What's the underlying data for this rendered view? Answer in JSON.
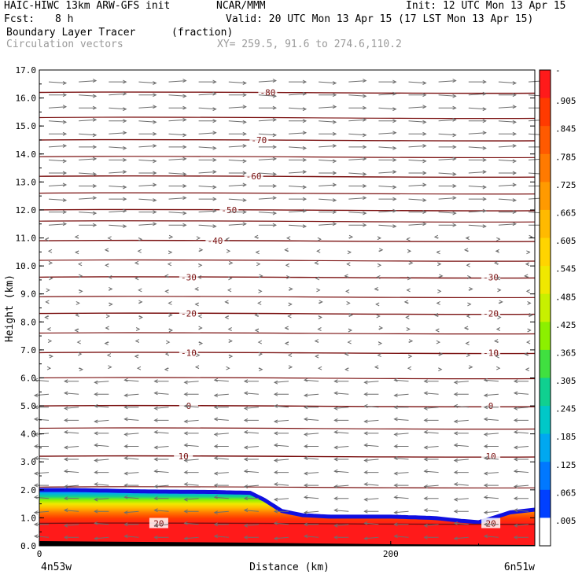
{
  "header": {
    "model": "HAIC-HIWC 13km ARW-GFS init",
    "org": "NCAR/MMM",
    "init": "Init: 12 UTC Mon 13 Apr 15",
    "fcst_label": "Fcst:",
    "fcst_value": "8 h",
    "valid": "Valid: 20 UTC Mon 13 Apr 15 (17 LST Mon 13 Apr 15)",
    "field": "Boundary Layer Tracer",
    "field_units": "(fraction)",
    "overlay": "Circulation vectors",
    "xy": "XY= 259.5, 91.6 to 274.6,110.2"
  },
  "chart_data": {
    "type": "heatmap",
    "xlabel": "Distance (km)",
    "ylabel": "Height (km)",
    "xlim": [
      0,
      282
    ],
    "ylim": [
      0,
      17
    ],
    "x_ticks": [
      0,
      200
    ],
    "x_tick_labels": [
      "0",
      "200"
    ],
    "x_end_labels": [
      "4n53w",
      "6n51w"
    ],
    "y_ticks": [
      0,
      1,
      2,
      3,
      4,
      5,
      6,
      7,
      8,
      9,
      10,
      11,
      12,
      13,
      14,
      15,
      16,
      17
    ],
    "y_tick_labels": [
      "0.0",
      "1.0",
      "2.0",
      "3.0",
      "4.0",
      "5.0",
      "6.0",
      "7.0",
      "8.0",
      "9.0",
      "10.0",
      "11.0",
      "12.0",
      "13.0",
      "14.0",
      "15.0",
      "16.0",
      "17.0"
    ],
    "tracer_top_km": {
      "x": [
        0,
        20,
        60,
        100,
        120,
        128,
        138,
        150,
        165,
        200,
        225,
        240,
        250,
        258,
        268,
        282
      ],
      "top": [
        2.05,
        2.05,
        2.0,
        1.98,
        1.95,
        1.7,
        1.3,
        1.15,
        1.1,
        1.1,
        1.05,
        0.95,
        0.9,
        1.05,
        1.25,
        1.35
      ]
    },
    "colorbar": {
      "labels": [
        "-",
        ".905",
        ".845",
        ".785",
        ".725",
        ".665",
        ".605",
        ".545",
        ".485",
        ".425",
        ".365",
        ".305",
        ".245",
        ".185",
        ".125",
        ".065",
        ".005"
      ],
      "colors": [
        "#ff1a1a",
        "#ff3a00",
        "#ff5a00",
        "#ff7a00",
        "#ff9a00",
        "#ffba00",
        "#ffd400",
        "#f0e800",
        "#c8f000",
        "#8cf000",
        "#40e040",
        "#10d090",
        "#00c8c8",
        "#00a8f0",
        "#0078ff",
        "#0040ff",
        "#ffffff"
      ]
    },
    "isotherms": [
      {
        "label": "-80",
        "h": 16.2,
        "label_x": [
          130
        ]
      },
      {
        "label": "-70",
        "h": 14.5,
        "label_x": [
          125
        ]
      },
      {
        "label": "-60",
        "h": 13.2,
        "label_x": [
          122
        ]
      },
      {
        "label": "-50",
        "h": 12.0,
        "label_x": [
          108
        ]
      },
      {
        "label": "-40",
        "h": 10.9,
        "label_x": [
          100
        ]
      },
      {
        "label": "-30",
        "h": 9.6,
        "label_x": [
          85,
          257
        ]
      },
      {
        "label": "-20",
        "h": 8.3,
        "label_x": [
          85,
          257
        ]
      },
      {
        "label": "-10",
        "h": 6.9,
        "label_x": [
          85,
          257
        ]
      },
      {
        "label": "0",
        "h": 5.0,
        "label_x": [
          85,
          257
        ]
      },
      {
        "label": "10",
        "h": 3.2,
        "label_x": [
          82,
          257
        ]
      },
      {
        "label": "20",
        "h": 0.8,
        "label_x": [
          68,
          257
        ]
      }
    ],
    "extra_isotherms_km": [
      15.3,
      13.9,
      12.6,
      11.6,
      10.2,
      8.9,
      7.6,
      6.0,
      4.2,
      2.1
    ]
  }
}
